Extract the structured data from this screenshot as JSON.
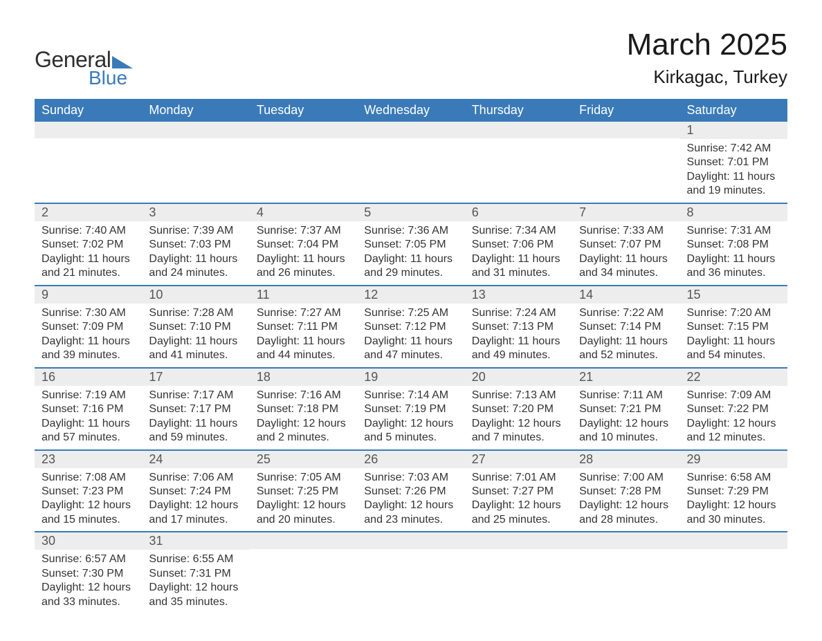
{
  "brand": {
    "word1": "General",
    "word2": "Blue",
    "logo_color": "#3a7ab8",
    "text_color": "#2f2f2f"
  },
  "title": "March 2025",
  "location": "Kirkagac, Turkey",
  "colors": {
    "header_bg": "#3a7ab8",
    "header_text": "#ffffff",
    "row_divider": "#3a7ab8",
    "daynum_bg": "#ededed",
    "body_text": "#333333",
    "page_bg": "#ffffff"
  },
  "typography": {
    "title_fontsize_pt": 33,
    "location_fontsize_pt": 20,
    "dayheader_fontsize_pt": 14,
    "daynum_fontsize_pt": 14,
    "body_fontsize_pt": 12
  },
  "day_headers": [
    "Sunday",
    "Monday",
    "Tuesday",
    "Wednesday",
    "Thursday",
    "Friday",
    "Saturday"
  ],
  "weeks": [
    [
      null,
      null,
      null,
      null,
      null,
      null,
      {
        "n": "1",
        "sunrise": "7:42 AM",
        "sunset": "7:01 PM",
        "daylight": "11 hours and 19 minutes."
      }
    ],
    [
      {
        "n": "2",
        "sunrise": "7:40 AM",
        "sunset": "7:02 PM",
        "daylight": "11 hours and 21 minutes."
      },
      {
        "n": "3",
        "sunrise": "7:39 AM",
        "sunset": "7:03 PM",
        "daylight": "11 hours and 24 minutes."
      },
      {
        "n": "4",
        "sunrise": "7:37 AM",
        "sunset": "7:04 PM",
        "daylight": "11 hours and 26 minutes."
      },
      {
        "n": "5",
        "sunrise": "7:36 AM",
        "sunset": "7:05 PM",
        "daylight": "11 hours and 29 minutes."
      },
      {
        "n": "6",
        "sunrise": "7:34 AM",
        "sunset": "7:06 PM",
        "daylight": "11 hours and 31 minutes."
      },
      {
        "n": "7",
        "sunrise": "7:33 AM",
        "sunset": "7:07 PM",
        "daylight": "11 hours and 34 minutes."
      },
      {
        "n": "8",
        "sunrise": "7:31 AM",
        "sunset": "7:08 PM",
        "daylight": "11 hours and 36 minutes."
      }
    ],
    [
      {
        "n": "9",
        "sunrise": "7:30 AM",
        "sunset": "7:09 PM",
        "daylight": "11 hours and 39 minutes."
      },
      {
        "n": "10",
        "sunrise": "7:28 AM",
        "sunset": "7:10 PM",
        "daylight": "11 hours and 41 minutes."
      },
      {
        "n": "11",
        "sunrise": "7:27 AM",
        "sunset": "7:11 PM",
        "daylight": "11 hours and 44 minutes."
      },
      {
        "n": "12",
        "sunrise": "7:25 AM",
        "sunset": "7:12 PM",
        "daylight": "11 hours and 47 minutes."
      },
      {
        "n": "13",
        "sunrise": "7:24 AM",
        "sunset": "7:13 PM",
        "daylight": "11 hours and 49 minutes."
      },
      {
        "n": "14",
        "sunrise": "7:22 AM",
        "sunset": "7:14 PM",
        "daylight": "11 hours and 52 minutes."
      },
      {
        "n": "15",
        "sunrise": "7:20 AM",
        "sunset": "7:15 PM",
        "daylight": "11 hours and 54 minutes."
      }
    ],
    [
      {
        "n": "16",
        "sunrise": "7:19 AM",
        "sunset": "7:16 PM",
        "daylight": "11 hours and 57 minutes."
      },
      {
        "n": "17",
        "sunrise": "7:17 AM",
        "sunset": "7:17 PM",
        "daylight": "11 hours and 59 minutes."
      },
      {
        "n": "18",
        "sunrise": "7:16 AM",
        "sunset": "7:18 PM",
        "daylight": "12 hours and 2 minutes."
      },
      {
        "n": "19",
        "sunrise": "7:14 AM",
        "sunset": "7:19 PM",
        "daylight": "12 hours and 5 minutes."
      },
      {
        "n": "20",
        "sunrise": "7:13 AM",
        "sunset": "7:20 PM",
        "daylight": "12 hours and 7 minutes."
      },
      {
        "n": "21",
        "sunrise": "7:11 AM",
        "sunset": "7:21 PM",
        "daylight": "12 hours and 10 minutes."
      },
      {
        "n": "22",
        "sunrise": "7:09 AM",
        "sunset": "7:22 PM",
        "daylight": "12 hours and 12 minutes."
      }
    ],
    [
      {
        "n": "23",
        "sunrise": "7:08 AM",
        "sunset": "7:23 PM",
        "daylight": "12 hours and 15 minutes."
      },
      {
        "n": "24",
        "sunrise": "7:06 AM",
        "sunset": "7:24 PM",
        "daylight": "12 hours and 17 minutes."
      },
      {
        "n": "25",
        "sunrise": "7:05 AM",
        "sunset": "7:25 PM",
        "daylight": "12 hours and 20 minutes."
      },
      {
        "n": "26",
        "sunrise": "7:03 AM",
        "sunset": "7:26 PM",
        "daylight": "12 hours and 23 minutes."
      },
      {
        "n": "27",
        "sunrise": "7:01 AM",
        "sunset": "7:27 PM",
        "daylight": "12 hours and 25 minutes."
      },
      {
        "n": "28",
        "sunrise": "7:00 AM",
        "sunset": "7:28 PM",
        "daylight": "12 hours and 28 minutes."
      },
      {
        "n": "29",
        "sunrise": "6:58 AM",
        "sunset": "7:29 PM",
        "daylight": "12 hours and 30 minutes."
      }
    ],
    [
      {
        "n": "30",
        "sunrise": "6:57 AM",
        "sunset": "7:30 PM",
        "daylight": "12 hours and 33 minutes."
      },
      {
        "n": "31",
        "sunrise": "6:55 AM",
        "sunset": "7:31 PM",
        "daylight": "12 hours and 35 minutes."
      },
      null,
      null,
      null,
      null,
      null
    ]
  ],
  "labels": {
    "sunrise": "Sunrise:",
    "sunset": "Sunset:",
    "daylight": "Daylight:"
  }
}
